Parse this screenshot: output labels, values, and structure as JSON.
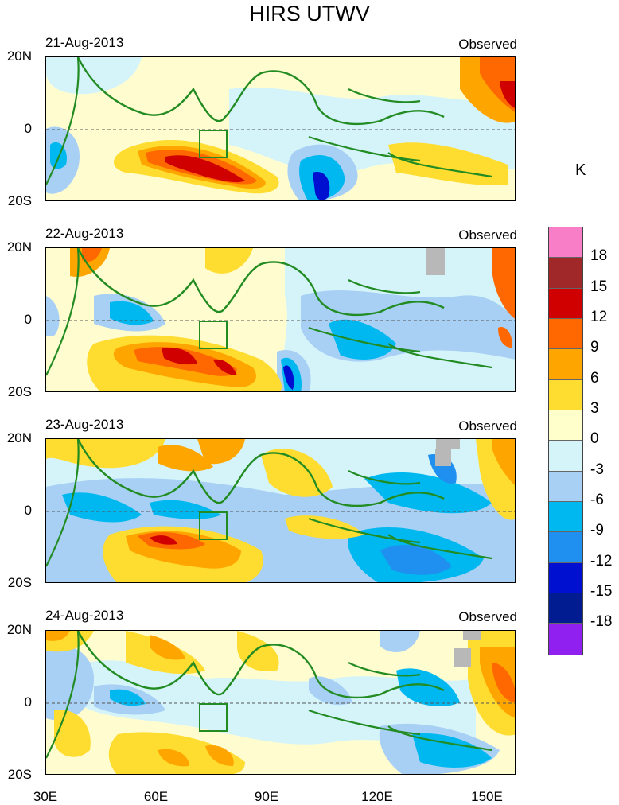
{
  "title": "HIRS UTWV",
  "unit_label": "K",
  "observed_label": "Observed",
  "panels": [
    {
      "date": "21-Aug-2013"
    },
    {
      "date": "22-Aug-2013"
    },
    {
      "date": "23-Aug-2013"
    },
    {
      "date": "24-Aug-2013"
    }
  ],
  "lat_labels": [
    "20N",
    "0",
    "20S"
  ],
  "lon_labels": [
    "30E",
    "60E",
    "90E",
    "120E",
    "150E"
  ],
  "colorbar": {
    "ticks": [
      "18",
      "15",
      "12",
      "9",
      "6",
      "3",
      "0",
      "-3",
      "-6",
      "-9",
      "-12",
      "-15",
      "-18"
    ],
    "colors": [
      "#f87ec8",
      "#a02828",
      "#d00000",
      "#ff6800",
      "#ffa500",
      "#ffdc30",
      "#ffffcc",
      "#d4f4fa",
      "#a8d0f4",
      "#00b8f0",
      "#2090f0",
      "#0010d0",
      "#001c90",
      "#9020f0"
    ]
  }
}
